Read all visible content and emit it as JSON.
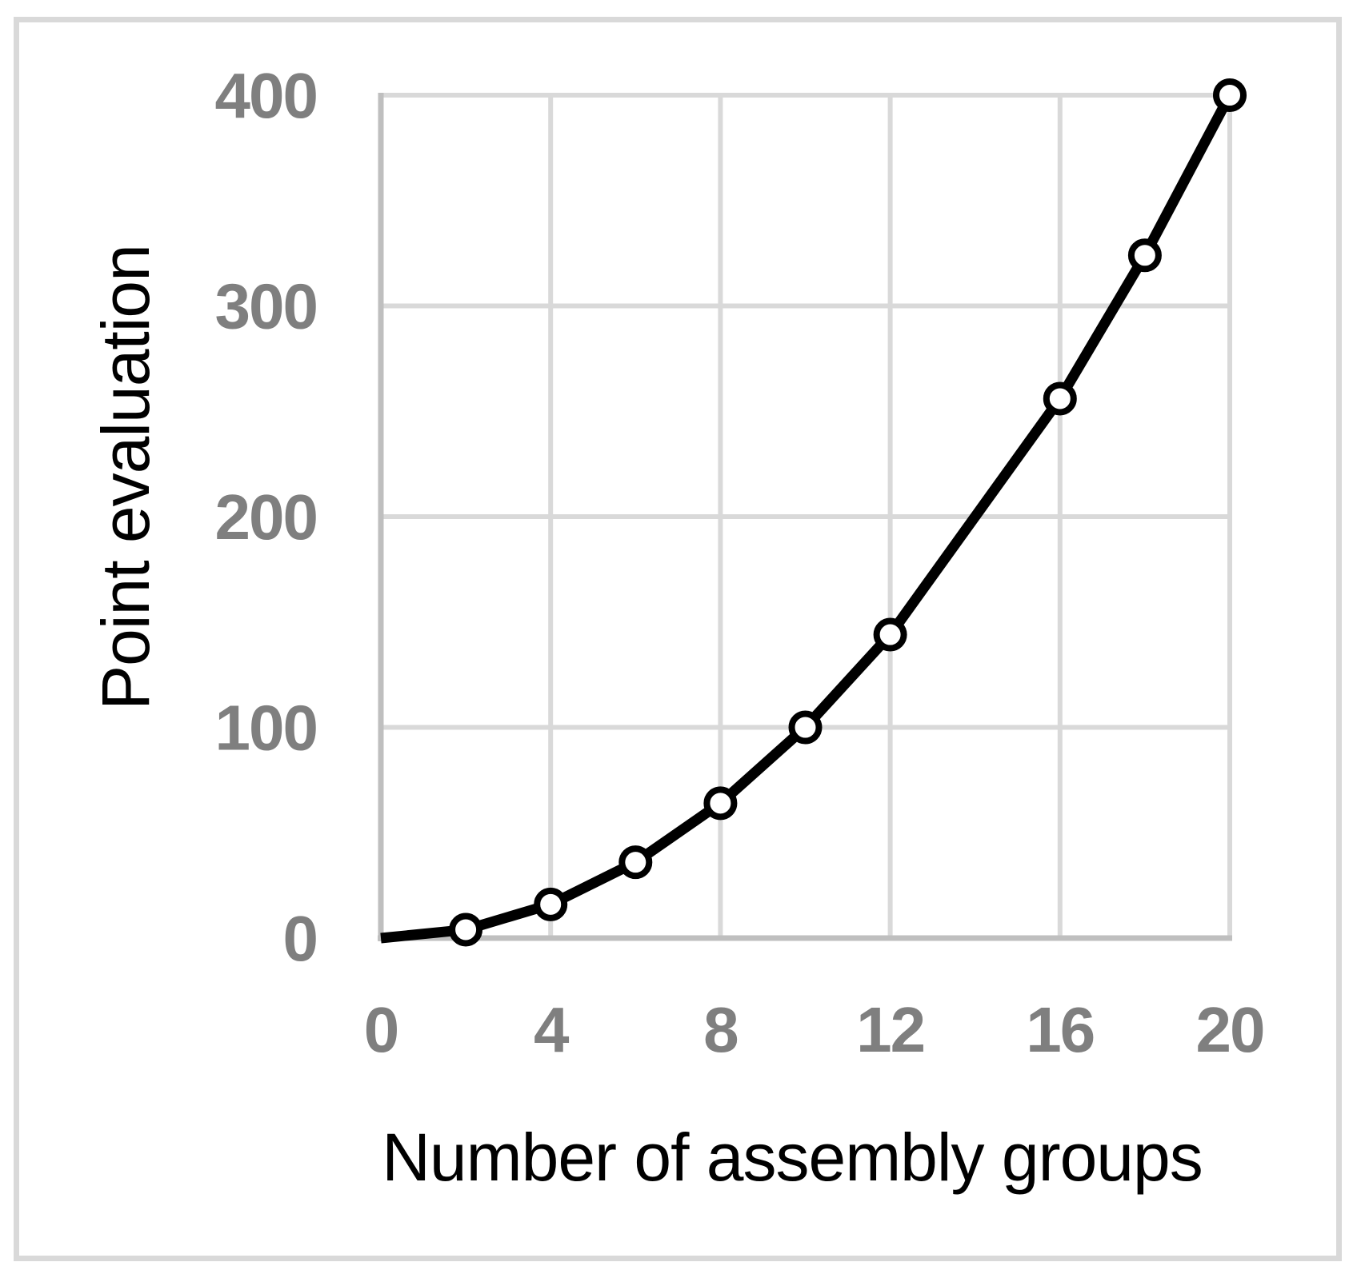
{
  "chart_data": {
    "type": "line",
    "title": "",
    "xlabel": "Number of assembly groups",
    "ylabel": "Point evaluation",
    "xlim": [
      0,
      20
    ],
    "ylim": [
      0,
      400
    ],
    "x_ticks": [
      0,
      4,
      8,
      12,
      16,
      20
    ],
    "y_ticks": [
      0,
      100,
      200,
      300,
      400
    ],
    "grid": true,
    "legend": false,
    "series": [
      {
        "name": "Point evaluation",
        "marker": "open-circle",
        "line_points": [
          [
            0,
            0
          ],
          [
            2,
            4
          ],
          [
            4,
            16
          ],
          [
            6,
            36
          ],
          [
            8,
            64
          ],
          [
            10,
            100
          ],
          [
            12,
            144
          ],
          [
            16,
            256
          ],
          [
            18,
            324
          ],
          [
            20,
            400
          ]
        ],
        "marker_points": [
          [
            2,
            4
          ],
          [
            4,
            16
          ],
          [
            6,
            36
          ],
          [
            8,
            64
          ],
          [
            10,
            100
          ],
          [
            12,
            144
          ],
          [
            16,
            256
          ],
          [
            18,
            324
          ],
          [
            20,
            400
          ]
        ]
      }
    ],
    "colors": {
      "line": "#000000",
      "marker_fill": "#ffffff",
      "marker_stroke": "#000000",
      "tick_label": "#7f7f7f",
      "gridline": "#d9d9d9",
      "axis_line": "#bfbfbf",
      "frame_border": "#d9d9d9",
      "axis_title": "#000000",
      "background": "#ffffff"
    }
  }
}
